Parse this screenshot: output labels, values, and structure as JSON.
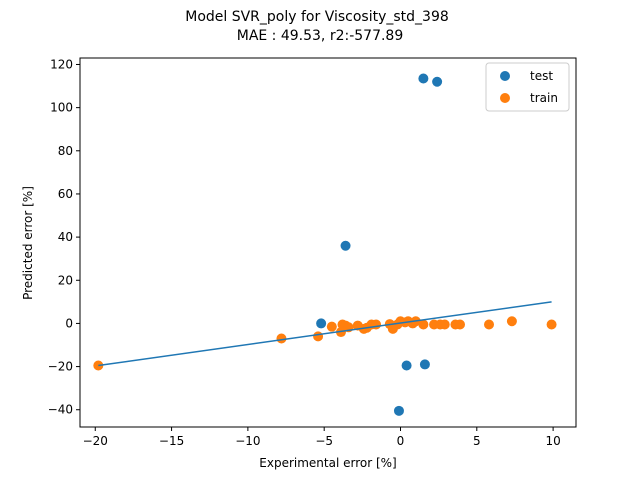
{
  "chart_data": {
    "type": "scatter",
    "title": "Model SVR_poly for Viscosity_std_398",
    "subtitle": "MAE :  49.53, r2:-577.89",
    "xlabel": "Experimental error [%]",
    "ylabel": "Predicted error [%]",
    "xlim": [
      -21,
      11.5
    ],
    "ylim": [
      -48,
      123
    ],
    "xticks": [
      -20,
      -15,
      -10,
      -5,
      0,
      5,
      10
    ],
    "xtick_labels": [
      "−20",
      "−15",
      "−10",
      "−5",
      "0",
      "5",
      "10"
    ],
    "yticks": [
      -40,
      -20,
      0,
      20,
      40,
      60,
      80,
      100,
      120
    ],
    "ytick_labels": [
      "−40",
      "−20",
      "0",
      "20",
      "40",
      "60",
      "80",
      "100",
      "120"
    ],
    "grid": false,
    "legend_position": "top-right",
    "series": [
      {
        "name": "test",
        "color": "#1f77b4",
        "points": [
          [
            1.5,
            113.5
          ],
          [
            2.4,
            112.0
          ],
          [
            -3.6,
            36.0
          ],
          [
            -5.2,
            0.0
          ],
          [
            0.4,
            -19.5
          ],
          [
            1.6,
            -19.0
          ],
          [
            -0.1,
            -40.5
          ]
        ]
      },
      {
        "name": "train",
        "color": "#ff7f0e",
        "points": [
          [
            -19.8,
            -19.5
          ],
          [
            -7.8,
            -7.0
          ],
          [
            -5.4,
            -6.0
          ],
          [
            -4.5,
            -1.5
          ],
          [
            -3.9,
            -4.0
          ],
          [
            -3.8,
            -0.5
          ],
          [
            -3.6,
            -1.0
          ],
          [
            -3.4,
            -1.8
          ],
          [
            -2.8,
            -1.0
          ],
          [
            -2.4,
            -2.5
          ],
          [
            -2.2,
            -2.0
          ],
          [
            -1.9,
            -0.5
          ],
          [
            -1.6,
            -0.5
          ],
          [
            -0.7,
            -0.3
          ],
          [
            -0.5,
            -2.5
          ],
          [
            -0.2,
            -0.5
          ],
          [
            0.0,
            1.0
          ],
          [
            0.3,
            0.5
          ],
          [
            0.5,
            1.0
          ],
          [
            0.8,
            0.0
          ],
          [
            1.0,
            1.0
          ],
          [
            1.5,
            -0.5
          ],
          [
            2.2,
            -0.5
          ],
          [
            2.6,
            -0.5
          ],
          [
            2.9,
            -0.5
          ],
          [
            3.6,
            -0.5
          ],
          [
            3.9,
            -0.5
          ],
          [
            5.8,
            -0.5
          ],
          [
            7.3,
            1.0
          ],
          [
            9.9,
            -0.5
          ]
        ]
      }
    ],
    "fit_line": {
      "color": "#1f77b4",
      "points": [
        [
          -19.8,
          -19.5
        ],
        [
          9.9,
          10.0
        ]
      ]
    }
  }
}
